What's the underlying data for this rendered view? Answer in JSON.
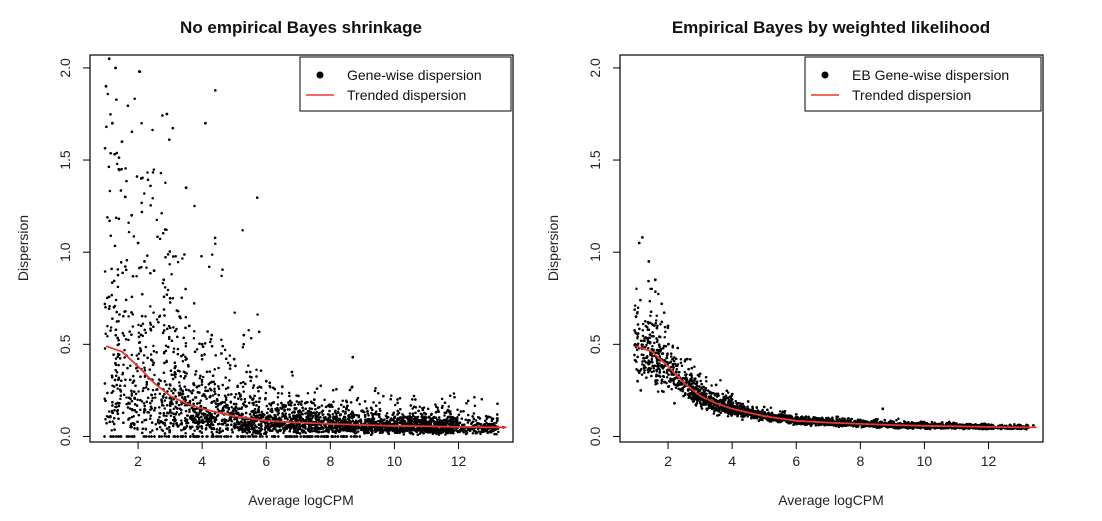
{
  "chart_data": [
    {
      "type": "scatter",
      "title": "No empirical Bayes shrinkage",
      "xlabel": "Average logCPM",
      "ylabel": "Dispersion",
      "xlim": [
        0.5,
        13.7
      ],
      "ylim": [
        -0.03,
        2.07
      ],
      "xticks": [
        "2",
        "4",
        "6",
        "8",
        "10",
        "12"
      ],
      "yticks": [
        "0.0",
        "0.5",
        "1.0",
        "1.5",
        "2.0"
      ],
      "legend_position": "top-right",
      "series": [
        {
          "name": "Gene-wise dispersion",
          "kind": "points",
          "color": "#000000",
          "x": [
            1.0,
            1.2,
            1.4,
            1.6,
            1.8,
            2.0,
            2.2,
            2.5,
            2.8,
            3.0,
            3.3,
            3.6,
            4.0,
            4.3,
            4.6,
            5.0,
            5.5,
            6.0,
            6.5,
            7.0,
            7.5,
            8.0,
            8.5,
            9.0,
            9.5,
            10.0,
            10.5,
            11.0,
            11.5,
            12.0,
            12.5,
            13.0,
            13.4,
            1.1,
            1.3,
            1.5,
            2.1,
            2.9,
            3.5,
            4.1,
            5.3,
            6.8,
            8.7,
            11.2
          ],
          "y": [
            1.9,
            1.7,
            1.45,
            1.3,
            1.2,
            1.05,
            0.95,
            0.9,
            0.85,
            0.75,
            0.65,
            0.6,
            0.5,
            0.55,
            0.45,
            0.42,
            0.35,
            0.3,
            0.27,
            0.22,
            0.2,
            0.17,
            0.15,
            0.14,
            0.12,
            0.1,
            0.09,
            0.08,
            0.07,
            0.06,
            0.06,
            0.05,
            0.05,
            2.05,
            2.0,
            1.6,
            1.4,
            1.75,
            1.35,
            1.7,
            0.55,
            0.35,
            0.43,
            0.1
          ],
          "note": "approx. visible extremes; dense cloud of several thousand genes between y 0 and the upper envelope"
        },
        {
          "name": "Trended dispersion",
          "kind": "line",
          "color": "#e8392b",
          "x": [
            1.0,
            1.5,
            2.0,
            2.5,
            3.0,
            3.5,
            4.0,
            5.0,
            6.0,
            7.0,
            8.0,
            9.0,
            10.0,
            11.0,
            12.0,
            13.0,
            13.5
          ],
          "y": [
            0.49,
            0.46,
            0.38,
            0.29,
            0.22,
            0.18,
            0.15,
            0.11,
            0.085,
            0.075,
            0.068,
            0.062,
            0.058,
            0.055,
            0.052,
            0.05,
            0.05
          ]
        }
      ]
    },
    {
      "type": "scatter",
      "title": "Empirical Bayes by weighted likelihood",
      "xlabel": "Average logCPM",
      "ylabel": "Dispersion",
      "xlim": [
        0.5,
        13.7
      ],
      "ylim": [
        -0.03,
        2.07
      ],
      "xticks": [
        "2",
        "4",
        "6",
        "8",
        "10",
        "12"
      ],
      "yticks": [
        "0.0",
        "0.5",
        "1.0",
        "1.5",
        "2.0"
      ],
      "legend_position": "top-right",
      "series": [
        {
          "name": "EB Gene-wise dispersion",
          "kind": "points",
          "color": "#000000",
          "x": [
            1.0,
            1.1,
            1.2,
            1.4,
            1.6,
            1.8,
            2.0,
            2.3,
            2.6,
            3.0,
            3.5,
            4.0,
            4.5,
            5.0,
            6.0,
            7.0,
            8.0,
            9.0,
            10.0,
            11.0,
            12.0,
            13.0,
            13.4,
            1.05,
            1.15,
            2.2,
            8.7
          ],
          "y": [
            0.65,
            1.05,
            1.08,
            0.95,
            0.85,
            0.72,
            0.6,
            0.48,
            0.42,
            0.34,
            0.28,
            0.23,
            0.19,
            0.16,
            0.12,
            0.1,
            0.09,
            0.08,
            0.075,
            0.07,
            0.065,
            0.06,
            0.06,
            0.3,
            0.25,
            0.18,
            0.15
          ],
          "note": "approx. visible extremes; dense band hugging the trend curve"
        },
        {
          "name": "Trended dispersion",
          "kind": "line",
          "color": "#e8392b",
          "x": [
            1.0,
            1.5,
            2.0,
            2.5,
            3.0,
            3.5,
            4.0,
            5.0,
            6.0,
            7.0,
            8.0,
            9.0,
            10.0,
            11.0,
            12.0,
            13.0,
            13.5
          ],
          "y": [
            0.49,
            0.46,
            0.38,
            0.29,
            0.22,
            0.18,
            0.15,
            0.11,
            0.085,
            0.075,
            0.068,
            0.062,
            0.058,
            0.055,
            0.052,
            0.05,
            0.05
          ]
        }
      ]
    }
  ]
}
